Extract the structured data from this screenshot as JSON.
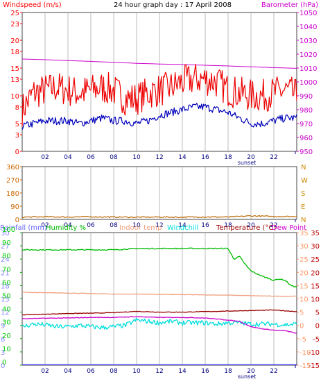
{
  "chart_data": [
    {
      "type": "line",
      "title": "24 hour graph day : 17 April 2008",
      "left_axis": {
        "label": "Windspeed (m/s)",
        "ticks": [
          0,
          3,
          5,
          8,
          10,
          13,
          15,
          18,
          20,
          23,
          25
        ],
        "range": [
          0,
          25
        ],
        "color": "#ff0000"
      },
      "right_axis": {
        "label": "Barometer (hPa)",
        "ticks": [
          950,
          960,
          970,
          980,
          990,
          1000,
          1010,
          1020,
          1030,
          1040,
          1050
        ],
        "range": [
          950,
          1050
        ],
        "color": "#cc00cc"
      },
      "x_ticks": [
        "02",
        "04",
        "06",
        "08",
        "10",
        "12",
        "14",
        "16",
        "18",
        "20",
        "22"
      ],
      "x_range": [
        0,
        24
      ],
      "sunset_label": "sunset",
      "sunset_hour": 20.0,
      "grid": "vertical",
      "series": [
        {
          "name": "Barometer",
          "axis": "right",
          "color": "#cc00cc",
          "x": [
            0,
            2,
            4,
            6,
            8,
            10,
            12,
            14,
            16,
            18,
            20,
            22,
            24
          ],
          "values": [
            1016.5,
            1016.0,
            1015.4,
            1014.8,
            1014.1,
            1013.4,
            1012.9,
            1012.5,
            1012.0,
            1011.5,
            1010.9,
            1010.3,
            1009.8
          ]
        },
        {
          "name": "Wind gust",
          "axis": "left",
          "color": "#ee0000",
          "x": [
            0,
            1,
            2,
            3,
            4,
            5,
            6,
            7,
            8,
            9,
            10,
            11,
            12,
            13,
            14,
            15,
            16,
            17,
            18,
            19,
            20,
            21,
            22,
            23,
            24
          ],
          "values": [
            7.5,
            10.5,
            11,
            11.5,
            11,
            10.5,
            11,
            11.5,
            11,
            9.5,
            9.5,
            10.5,
            11,
            11.5,
            12.5,
            13,
            13,
            12.5,
            11,
            10.5,
            10,
            10,
            10.5,
            11,
            10
          ]
        },
        {
          "name": "Wind average",
          "axis": "left",
          "color": "#0000bb",
          "x": [
            0,
            1,
            2,
            3,
            4,
            5,
            6,
            7,
            8,
            9,
            10,
            11,
            12,
            13,
            14,
            15,
            16,
            17,
            18,
            19,
            20,
            21,
            22,
            23,
            24
          ],
          "values": [
            4.5,
            5,
            5.5,
            5.5,
            5.5,
            5,
            5.5,
            6,
            5.5,
            5.5,
            5,
            5.5,
            6.5,
            7,
            7.5,
            8,
            8,
            7.5,
            7,
            6,
            5,
            5,
            5.5,
            6,
            6
          ]
        }
      ]
    },
    {
      "type": "line",
      "left_axis": {
        "ticks": [
          0,
          90,
          180,
          270,
          360
        ],
        "range": [
          0,
          360
        ]
      },
      "right_axis": {
        "ticks": [
          "N",
          "W",
          "S",
          "E",
          "N"
        ],
        "color": "#cc8800"
      },
      "x_ticks": [
        "02",
        "04",
        "06",
        "08",
        "10",
        "12",
        "14",
        "16",
        "18",
        "20",
        "22"
      ],
      "x_range": [
        0,
        24
      ],
      "series": [
        {
          "name": "Wind direction",
          "color": "#bb6600",
          "x": [
            0,
            2,
            4,
            6,
            8,
            10,
            12,
            14,
            16,
            18,
            20,
            22,
            24
          ],
          "values": [
            15,
            18,
            16,
            18,
            16,
            15,
            16,
            15,
            17,
            16,
            24,
            20,
            20
          ]
        }
      ]
    },
    {
      "type": "line",
      "legend": [
        {
          "text": "Rainfall (mm)",
          "color": "#6666ff"
        },
        {
          "text": "Humidity %",
          "color": "#00bb00"
        },
        {
          "text": "Indoor temp",
          "color": "#f0a080"
        },
        {
          "text": "Windchill",
          "color": "#00dddd"
        },
        {
          "text": "Temperature (°C)",
          "color": "#990000"
        },
        {
          "text": "Dew Point",
          "color": "#cc00cc"
        }
      ],
      "axis_rain": {
        "ticks": [
          0,
          3,
          6,
          9,
          12,
          15,
          18,
          21,
          24,
          27,
          30
        ],
        "range": [
          0,
          30
        ],
        "color": "#8888ff"
      },
      "axis_humidity": {
        "ticks": [
          0,
          10,
          20,
          30,
          40,
          50,
          60,
          70,
          80,
          90,
          100
        ],
        "range": [
          0,
          100
        ],
        "color": "#00cc00"
      },
      "axis_indoor": {
        "ticks": [
          -15,
          -10,
          -5,
          0,
          5,
          10,
          15,
          20,
          25,
          30,
          35
        ],
        "range": [
          -15,
          35
        ],
        "color": "#ff9966"
      },
      "axis_temperature": {
        "ticks": [
          -15,
          -10,
          -5,
          0,
          5,
          10,
          15,
          20,
          25,
          30,
          35
        ],
        "range": [
          -15,
          35
        ],
        "color": "#bb0000"
      },
      "x_ticks": [
        "02",
        "04",
        "06",
        "08",
        "10",
        "12",
        "14",
        "16",
        "18",
        "20",
        "22"
      ],
      "x_range": [
        0,
        24
      ],
      "sunset_label": "sunset",
      "sunset_hour": 20.0,
      "series": [
        {
          "name": "Humidity",
          "axis": "humidity",
          "color": "#00bb00",
          "x": [
            0,
            2,
            4,
            6,
            8,
            10,
            12,
            14,
            16,
            18,
            18.5,
            19,
            19.5,
            20,
            21,
            22,
            22.5,
            23,
            23.5,
            24
          ],
          "values": [
            87,
            87,
            87,
            87,
            87,
            88,
            88,
            88,
            88,
            88,
            80,
            82,
            76,
            71,
            67,
            64,
            65,
            64,
            60,
            59
          ]
        },
        {
          "name": "Indoor temp",
          "axis": "indoor",
          "color": "#f0a080",
          "x": [
            0,
            2,
            4,
            6,
            8,
            10,
            12,
            14,
            16,
            18,
            20,
            22,
            24
          ],
          "values": [
            12.5,
            12.3,
            12.2,
            12.0,
            11.8,
            11.8,
            11.7,
            11.6,
            11.5,
            11.4,
            11.2,
            11.0,
            11.0
          ]
        },
        {
          "name": "Temperature",
          "axis": "temperature",
          "color": "#990000",
          "x": [
            0,
            2,
            4,
            6,
            8,
            10,
            12,
            14,
            16,
            18,
            20,
            22,
            24
          ],
          "values": [
            4.0,
            4.2,
            4.5,
            4.6,
            4.8,
            5.3,
            5.0,
            5.0,
            5.2,
            5.4,
            5.6,
            5.8,
            5.2
          ]
        },
        {
          "name": "Windchill",
          "axis": "temperature",
          "color": "#00dddd",
          "x": [
            0,
            1,
            2,
            3,
            4,
            5,
            6,
            7,
            8,
            9,
            10,
            11,
            12,
            13,
            14,
            15,
            16,
            17,
            18,
            19,
            20,
            21,
            22,
            23,
            24
          ],
          "values": [
            -0.5,
            0.5,
            0.2,
            -0.5,
            -0.5,
            0,
            -0.5,
            -0.8,
            -0.5,
            0,
            2.0,
            1.5,
            1.0,
            1.5,
            1.0,
            1.0,
            1.0,
            0.5,
            1.0,
            1.0,
            0.5,
            0.5,
            0.5,
            0.2,
            0.5
          ]
        },
        {
          "name": "Dew Point",
          "axis": "temperature",
          "color": "#cc00cc",
          "x": [
            0,
            2,
            4,
            6,
            8,
            10,
            12,
            14,
            16,
            18,
            19,
            20,
            21,
            22,
            23,
            24
          ],
          "values": [
            2.5,
            2.7,
            2.8,
            3.0,
            3.0,
            3.3,
            3.0,
            3.0,
            2.8,
            2.0,
            1.5,
            -0.5,
            -1.3,
            -1.8,
            -2.0,
            -3.0
          ]
        },
        {
          "name": "Rainfall",
          "axis": "rain",
          "color": "#3333ff",
          "x": [
            0,
            24
          ],
          "values": [
            0.1,
            0.1
          ]
        }
      ]
    }
  ]
}
